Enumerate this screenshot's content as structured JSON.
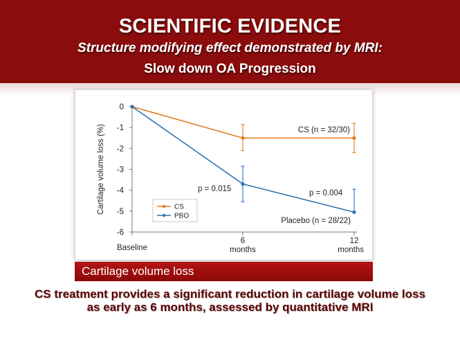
{
  "header": {
    "title": "SCIENTIFIC EVIDENCE",
    "subtitle": "Structure modifying effect demonstrated by MRI:",
    "subtitle2": "Slow down OA Progression"
  },
  "caption": "Cartilage volume loss",
  "conclusion": "CS treatment provides a significant reduction in cartilage volume loss as early as 6 months, assessed by quantitative MRI",
  "colors": {
    "header_bg": "#8b0c0c",
    "cs": "#e07b1e",
    "pbo": "#2f74b5"
  },
  "chart_data": {
    "type": "line",
    "xlabel": "",
    "ylabel": "Cartilage volume loss (%)",
    "ylim": [
      -6,
      0
    ],
    "yticks": [
      0,
      -1,
      -2,
      -3,
      -4,
      -5,
      -6
    ],
    "x_categories": [
      {
        "top": "Baseline",
        "bottom": ""
      },
      {
        "top": "6",
        "bottom": "months"
      },
      {
        "top": "12",
        "bottom": "months"
      }
    ],
    "series": [
      {
        "name": "CS",
        "values": [
          0,
          -1.5,
          -1.5
        ],
        "error_low": [
          0,
          -2.1,
          -2.2
        ],
        "error_high": [
          0,
          -0.85,
          -0.8
        ],
        "end_label": "CS (n = 32/30)"
      },
      {
        "name": "PBO",
        "values": [
          0,
          -3.7,
          -5.05
        ],
        "error_low": [
          0,
          -4.55,
          -5.05
        ],
        "error_high": [
          0,
          -2.85,
          -3.95
        ],
        "end_label": "Placebo (n = 28/22)"
      }
    ],
    "annotations": [
      "p = 0.015",
      "p = 0.004"
    ],
    "legend_position": "bottom-left",
    "grid": false
  }
}
